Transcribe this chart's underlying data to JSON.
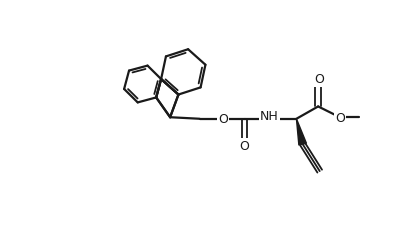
{
  "bg": "#ffffff",
  "lc": "#1a1a1a",
  "lw": 1.6,
  "lw2": 1.3,
  "figsize": [
    4.0,
    2.28
  ],
  "dpi": 100,
  "xlim": [
    0,
    400
  ],
  "ylim": [
    0,
    228
  ]
}
